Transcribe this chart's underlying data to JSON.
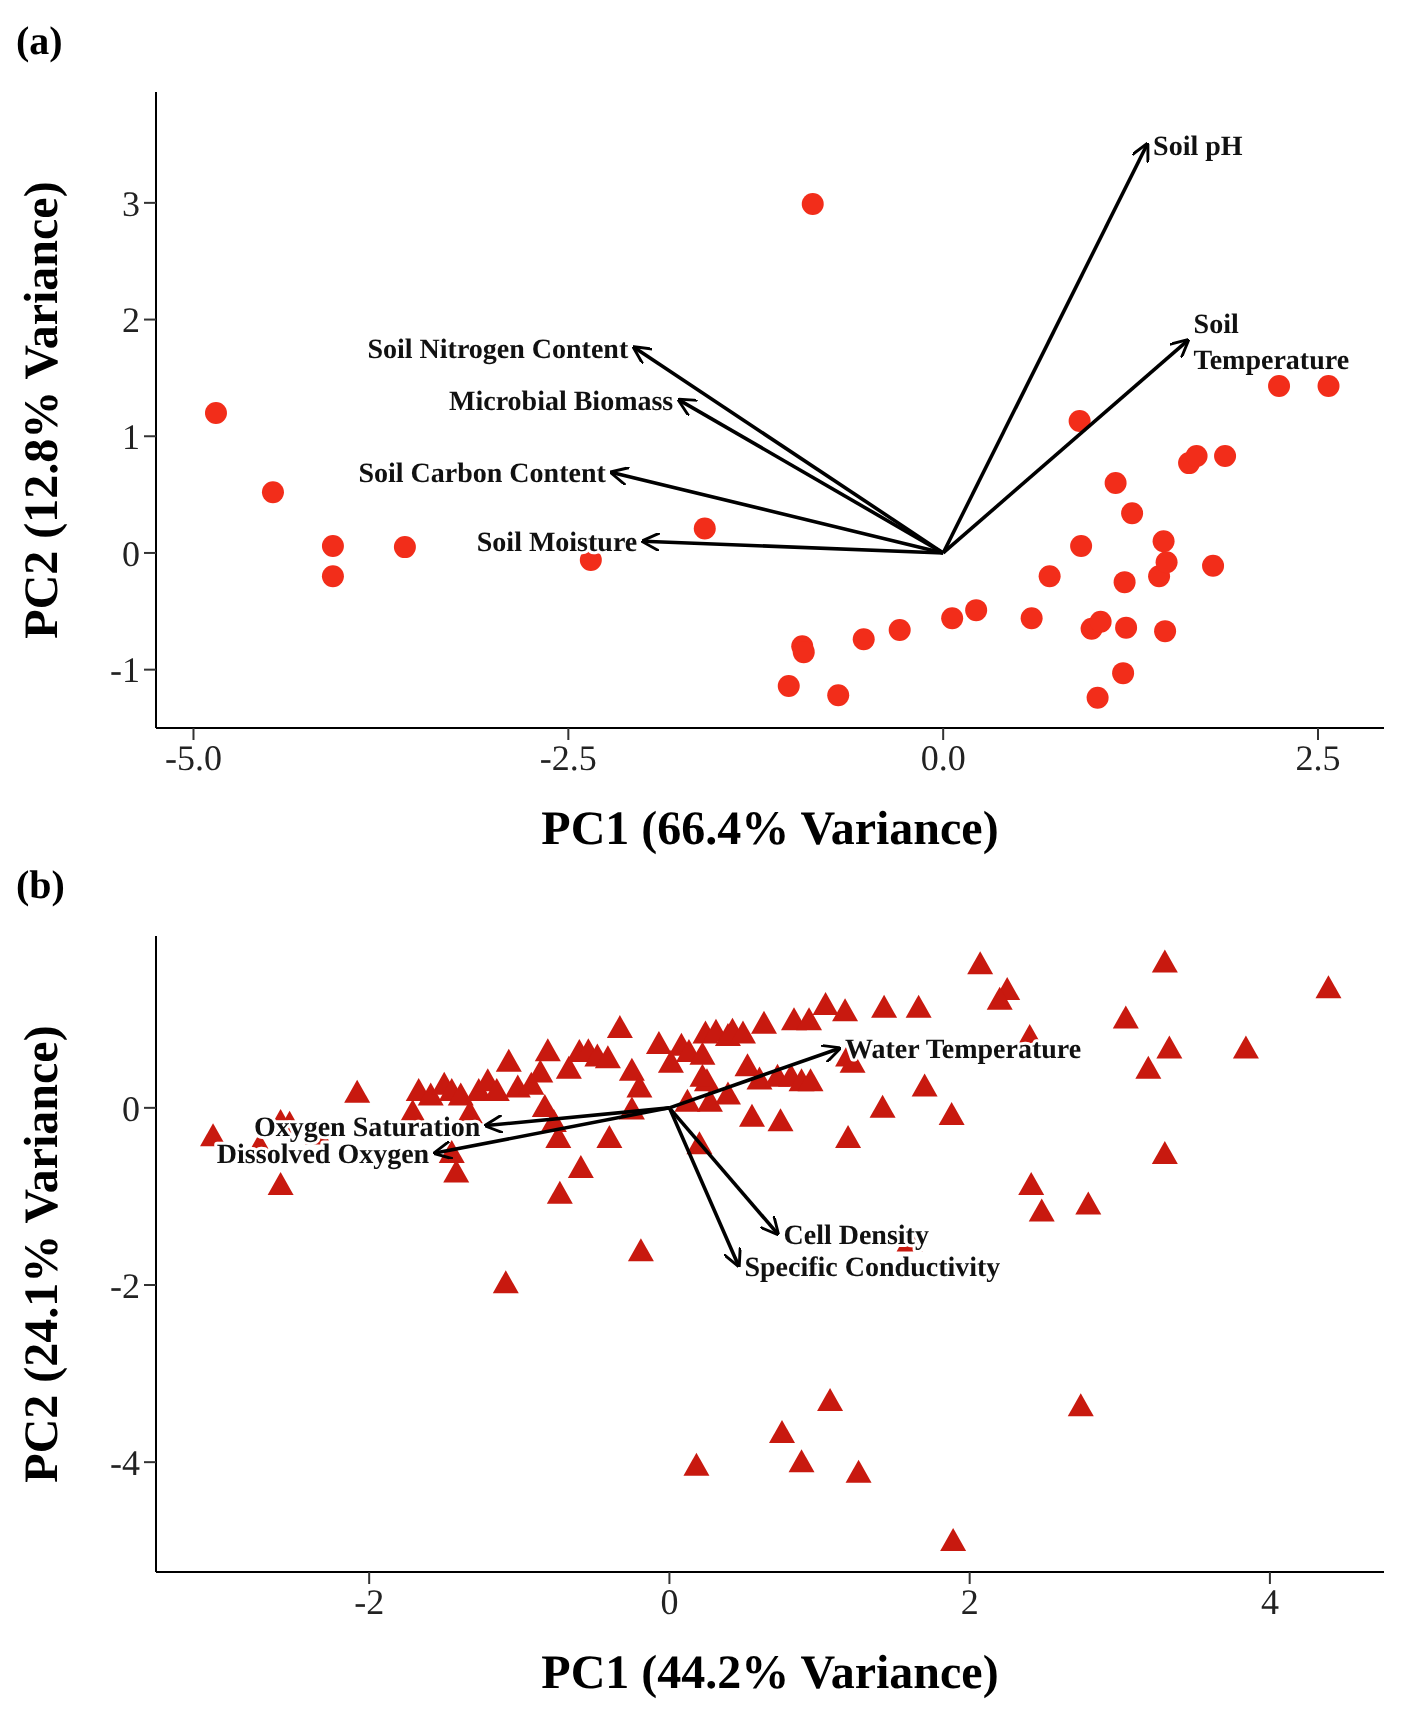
{
  "chart_data": [
    {
      "type": "scatter",
      "title": "(a)",
      "xlabel": "PC1 (66.4% Variance)",
      "ylabel": "PC2 (12.8% Variance)",
      "marker": "circle",
      "grid": false,
      "legend": false,
      "xlim": [
        -5.25,
        2.94
      ],
      "ylim": [
        -1.5,
        3.95
      ],
      "xticks": [
        {
          "value": -5,
          "label": "-5.0"
        },
        {
          "value": -2.5,
          "label": "-2.5"
        },
        {
          "value": 0,
          "label": "0.0"
        },
        {
          "value": 2.5,
          "label": "2.5"
        }
      ],
      "yticks": [
        -1,
        0,
        1,
        2,
        3
      ],
      "series": [
        {
          "color": "#f22d1a",
          "x": [
            -4.85,
            -4.47,
            -4.07,
            -4.07,
            -3.59,
            -2.35,
            -1.59,
            -0.87,
            -1.03,
            -0.94,
            -0.93,
            -0.7,
            -0.53,
            -0.29,
            0.06,
            0.22,
            0.59,
            0.71,
            0.91,
            0.92,
            0.99,
            1.05,
            1.03,
            1.15,
            1.2,
            1.21,
            1.22,
            1.26,
            1.44,
            1.47,
            1.49,
            1.48,
            1.64,
            1.69,
            1.8,
            1.88,
            2.24,
            2.57
          ],
          "values": [
            1.2,
            0.52,
            0.06,
            -0.2,
            0.05,
            -0.06,
            0.21,
            2.99,
            -1.14,
            -0.8,
            -0.85,
            -1.22,
            -0.74,
            -0.66,
            -0.56,
            -0.49,
            -0.56,
            -0.2,
            1.13,
            0.06,
            -0.65,
            -0.59,
            -1.24,
            0.6,
            -1.03,
            -0.25,
            -0.64,
            0.34,
            -0.2,
            0.1,
            -0.08,
            -0.67,
            0.77,
            0.83,
            -0.11,
            0.83,
            1.43,
            1.43
          ]
        },
        {
          "type": "line",
          "name": "Soil pH",
          "color": "#000000",
          "marker": "none",
          "x": [
            0,
            1.36
          ],
          "values": [
            0,
            3.5
          ]
        },
        {
          "type": "line",
          "name": "Soil\nTemperature",
          "color": "#000000",
          "marker": "none",
          "x": [
            0,
            1.63
          ],
          "values": [
            0,
            1.82
          ]
        },
        {
          "type": "line",
          "name": "Soil Nitrogen Content",
          "color": "#000000",
          "marker": "none",
          "x": [
            0,
            -2.06
          ],
          "values": [
            0,
            1.76
          ]
        },
        {
          "type": "line",
          "name": "Microbial Biomass",
          "color": "#000000",
          "marker": "none",
          "x": [
            0,
            -1.76
          ],
          "values": [
            0,
            1.31
          ]
        },
        {
          "type": "line",
          "name": "Soil Carbon Content",
          "color": "#000000",
          "marker": "none",
          "x": [
            0,
            -2.21
          ],
          "values": [
            0,
            0.69
          ]
        },
        {
          "type": "line",
          "name": "Soil Moisture",
          "color": "#000000",
          "marker": "none",
          "x": [
            0,
            -2.0
          ],
          "values": [
            0,
            0.1
          ]
        }
      ]
    },
    {
      "type": "scatter",
      "title": "(b)",
      "xlabel": "PC1 (44.2% Variance)",
      "ylabel": "PC2 (24.1% Variance)",
      "marker": "triangle",
      "grid": false,
      "legend": false,
      "xlim": [
        -3.42,
        4.76
      ],
      "ylim": [
        -5.24,
        1.94
      ],
      "xticks": [
        -2,
        0,
        2,
        4
      ],
      "yticks": [
        -4,
        -2,
        0
      ],
      "series": [
        {
          "color": "#c8190f",
          "x": [
            2.07,
            3.3,
            4.39,
            2.25,
            2.2,
            3.04,
            3.84,
            3.33,
            3.19,
            2.4,
            3.3,
            2.41,
            2.48,
            2.79,
            1.6,
            -0.19,
            -1.09,
            1.07,
            0.75,
            0.18,
            0.88,
            1.26,
            2.74,
            1.89,
            1.43,
            1.66,
            1.7,
            1.88,
            1.42,
            1.19,
            1.19,
            1.22,
            1.04,
            1.17,
            0.74,
            0.55,
            0.2,
            0.12,
            0.27,
            0.39,
            -3.04,
            -2.73,
            -2.59,
            -2.59,
            -2.53,
            -2.34,
            -2.08,
            -1.71,
            -1.67,
            -1.59,
            -1.5,
            -1.45,
            -1.39,
            -1.33,
            -1.27,
            -1.21,
            -1.15,
            -1.07,
            -1.01,
            -0.92,
            -0.86,
            -0.81,
            -0.83,
            -0.77,
            -0.74,
            -0.73,
            -0.59,
            -1.45,
            -1.42,
            -0.67,
            -0.6,
            -0.54,
            -0.48,
            -0.41,
            -0.33,
            -0.4,
            -0.25,
            -0.2,
            -0.25,
            -0.07,
            0.01,
            0.08,
            0.13,
            0.22,
            0.24,
            0.31,
            0.39,
            0.42,
            0.49,
            0.63,
            0.52,
            0.6,
            0.72,
            0.81,
            0.88,
            0.94,
            0.83,
            0.93,
            0.25,
            0.22
          ],
          "values": [
            1.62,
            1.64,
            1.35,
            1.33,
            1.22,
            1.01,
            0.67,
            0.67,
            0.44,
            0.8,
            -0.52,
            -0.87,
            -1.17,
            -1.09,
            -1.51,
            -1.62,
            -1.98,
            -3.31,
            -3.67,
            -4.04,
            -4.0,
            -4.12,
            -3.37,
            -4.89,
            1.13,
            1.13,
            0.24,
            -0.08,
            0.0,
            -0.34,
            0.58,
            0.51,
            1.16,
            1.09,
            -0.15,
            -0.1,
            -0.41,
            0.07,
            0.07,
            0.15,
            -0.32,
            -0.43,
            -0.87,
            -0.16,
            -0.18,
            -0.3,
            0.17,
            -0.05,
            0.19,
            0.14,
            0.26,
            0.19,
            0.14,
            -0.06,
            0.19,
            0.3,
            0.19,
            0.52,
            0.23,
            0.26,
            0.4,
            0.64,
            0.01,
            -0.16,
            -0.34,
            -0.97,
            -0.68,
            -0.51,
            -0.73,
            0.44,
            0.63,
            0.64,
            0.58,
            0.56,
            0.9,
            -0.34,
            0.42,
            0.23,
            -0.02,
            0.72,
            0.51,
            0.7,
            0.63,
            0.6,
            0.84,
            0.86,
            0.81,
            0.87,
            0.84,
            0.95,
            0.47,
            0.32,
            0.35,
            0.35,
            0.3,
            0.3,
            0.99,
            0.99,
            0.3,
            0.35
          ]
        },
        {
          "type": "line",
          "name": "Water Temperature",
          "color": "#000000",
          "marker": "none",
          "x": [
            0,
            1.13
          ],
          "values": [
            0,
            0.67
          ]
        },
        {
          "type": "line",
          "name": "Oxygen Saturation",
          "color": "#000000",
          "marker": "none",
          "x": [
            0,
            -1.22
          ],
          "values": [
            0,
            -0.2
          ]
        },
        {
          "type": "line",
          "name": "Dissolved Oxygen",
          "color": "#000000",
          "marker": "none",
          "x": [
            0,
            -1.56
          ],
          "values": [
            0,
            -0.51
          ]
        },
        {
          "type": "line",
          "name": "Cell Density",
          "color": "#000000",
          "marker": "none",
          "x": [
            0,
            0.72
          ],
          "values": [
            0,
            -1.42
          ]
        },
        {
          "type": "line",
          "name": "Specific Conductivity",
          "color": "#000000",
          "marker": "none",
          "x": [
            0,
            0.46
          ],
          "values": [
            0,
            -1.78
          ]
        }
      ]
    }
  ]
}
